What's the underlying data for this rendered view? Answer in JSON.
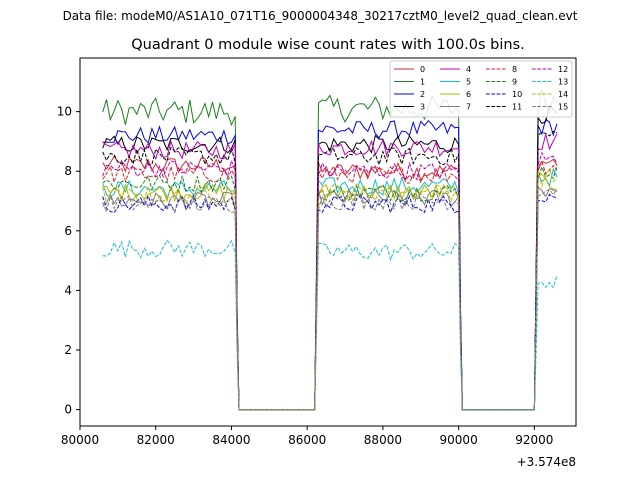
{
  "chart_data": {
    "type": "line",
    "suptitle": "Data file: modeM0/AS1A10_071T16_9000004348_30217cztM0_level2_quad_clean.evt",
    "title": "Quadrant 0 module wise count rates with 100.0s bins.",
    "xlabel": "",
    "ylabel": "",
    "x_offset_label": "+3.574e8",
    "xlim": [
      80000,
      93100
    ],
    "ylim": [
      -0.55,
      11.8
    ],
    "xticks": [
      80000,
      82000,
      84000,
      86000,
      88000,
      90000,
      92000
    ],
    "yticks": [
      0,
      2,
      4,
      6,
      8,
      10
    ],
    "legend_position": "top-right",
    "segments": [
      {
        "x_start": 80600,
        "x_end": 84100
      },
      {
        "x_start": 86300,
        "x_end": 90000
      },
      {
        "x_start": 92100,
        "x_end": 92600
      }
    ],
    "gap_value": 0,
    "series": [
      {
        "name": "0",
        "color": "#d62728",
        "dash": "solid",
        "segment_levels": [
          8.2,
          8.0,
          8.3
        ]
      },
      {
        "name": "1",
        "color": "#1a7f1a",
        "dash": "solid",
        "segment_levels": [
          10.0,
          10.1,
          10.4
        ]
      },
      {
        "name": "2",
        "color": "#0000ee",
        "dash": "solid",
        "segment_levels": [
          9.2,
          9.4,
          9.5
        ]
      },
      {
        "name": "3",
        "color": "#000000",
        "dash": "solid",
        "segment_levels": [
          8.9,
          8.9,
          9.9
        ]
      },
      {
        "name": "4",
        "color": "#bf00bf",
        "dash": "solid",
        "segment_levels": [
          8.7,
          8.8,
          9.0
        ]
      },
      {
        "name": "5",
        "color": "#17becf",
        "dash": "solid",
        "segment_levels": [
          7.4,
          7.5,
          7.8
        ]
      },
      {
        "name": "6",
        "color": "#b5b800",
        "dash": "solid",
        "segment_levels": [
          7.3,
          7.3,
          7.6
        ]
      },
      {
        "name": "7",
        "color": "#7f7f7f",
        "dash": "solid",
        "segment_levels": [
          7.0,
          7.1,
          7.4
        ]
      },
      {
        "name": "8",
        "color": "#d62728",
        "dash": "dashed",
        "segment_levels": [
          7.9,
          7.9,
          8.2
        ]
      },
      {
        "name": "9",
        "color": "#1a7f1a",
        "dash": "dashed",
        "segment_levels": [
          7.6,
          7.3,
          8.0
        ]
      },
      {
        "name": "10",
        "color": "#0000ee",
        "dash": "dashed",
        "segment_levels": [
          6.9,
          6.9,
          7.2
        ]
      },
      {
        "name": "11",
        "color": "#000000",
        "dash": "dashed",
        "segment_levels": [
          8.5,
          8.5,
          9.2
        ]
      },
      {
        "name": "12",
        "color": "#bf00bf",
        "dash": "dashed",
        "segment_levels": [
          8.1,
          8.0,
          8.4
        ]
      },
      {
        "name": "13",
        "color": "#17becf",
        "dash": "dashed",
        "segment_levels": [
          5.4,
          5.3,
          4.3
        ]
      },
      {
        "name": "14",
        "color": "#b5b800",
        "dash": "dashed",
        "segment_levels": [
          7.2,
          7.3,
          7.8
        ]
      },
      {
        "name": "15",
        "color": "#7f7f7f",
        "dash": "dashed",
        "segment_levels": [
          6.9,
          7.0,
          7.4
        ]
      }
    ]
  }
}
